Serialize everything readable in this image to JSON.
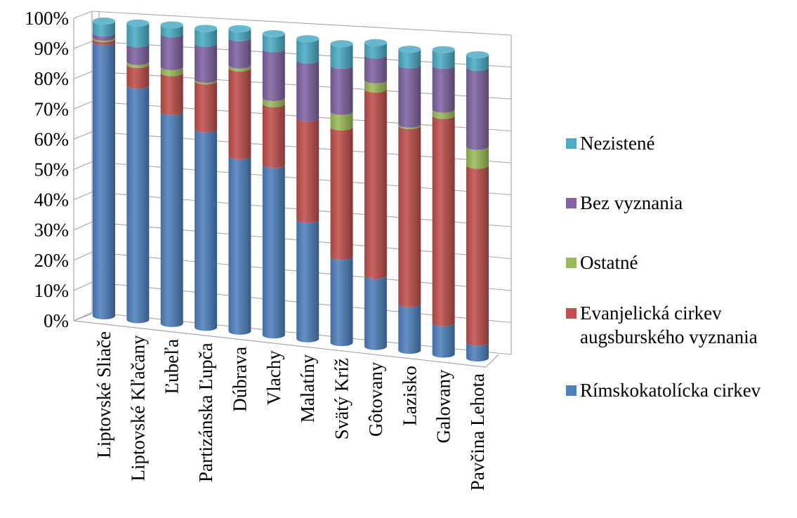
{
  "chart_data": {
    "type": "bar",
    "stacked": true,
    "percent_stacked": true,
    "style": "3d-cylinder",
    "title": "",
    "xlabel": "",
    "ylabel": "",
    "ylim": [
      0,
      100
    ],
    "y_ticks": [
      "0%",
      "10%",
      "20%",
      "30%",
      "40%",
      "50%",
      "60%",
      "70%",
      "80%",
      "90%",
      "100%"
    ],
    "grid": true,
    "legend_position": "right",
    "categories": [
      "Liptovské Sliače",
      "Liptovské Kľačany",
      "Ľubeľa",
      "Partizánska Ľupča",
      "Dúbrava",
      "Vlachy",
      "Malatíny",
      "Svätý Kríž",
      "Gôtovany",
      "Lazisko",
      "Galovany",
      "Pavčina Lehota"
    ],
    "series": [
      {
        "name": "Rímskokatolícka cirkev",
        "color": "#4f81bd",
        "values": [
          93,
          79,
          71,
          66,
          58,
          56,
          39,
          28,
          23,
          15,
          10,
          5
        ]
      },
      {
        "name": "Evanjelická cirkev augsburského vyznania",
        "color": "#c0504d",
        "values": [
          1,
          7,
          13,
          16,
          29,
          20,
          33,
          42,
          60,
          57,
          66,
          56
        ]
      },
      {
        "name": "Ostatné",
        "color": "#9bbb59",
        "values": [
          0.5,
          1,
          2,
          0.5,
          1,
          2,
          0,
          5,
          3,
          0.5,
          2,
          6
        ]
      },
      {
        "name": "Bez vyznania",
        "color": "#8064a2",
        "values": [
          1.5,
          6,
          11,
          12,
          9,
          16,
          19,
          15,
          8,
          19,
          14,
          25
        ]
      },
      {
        "name": "Nezistené",
        "color": "#4bacc6",
        "values": [
          4,
          7,
          3,
          5,
          3,
          5,
          7,
          7,
          4,
          5,
          5,
          4
        ]
      }
    ],
    "legend_order": [
      "Nezistené",
      "Bez vyznania",
      "Ostatné",
      "Evanjelická cirkev augsburského vyznania",
      "Rímskokatolícka cirkev"
    ]
  }
}
